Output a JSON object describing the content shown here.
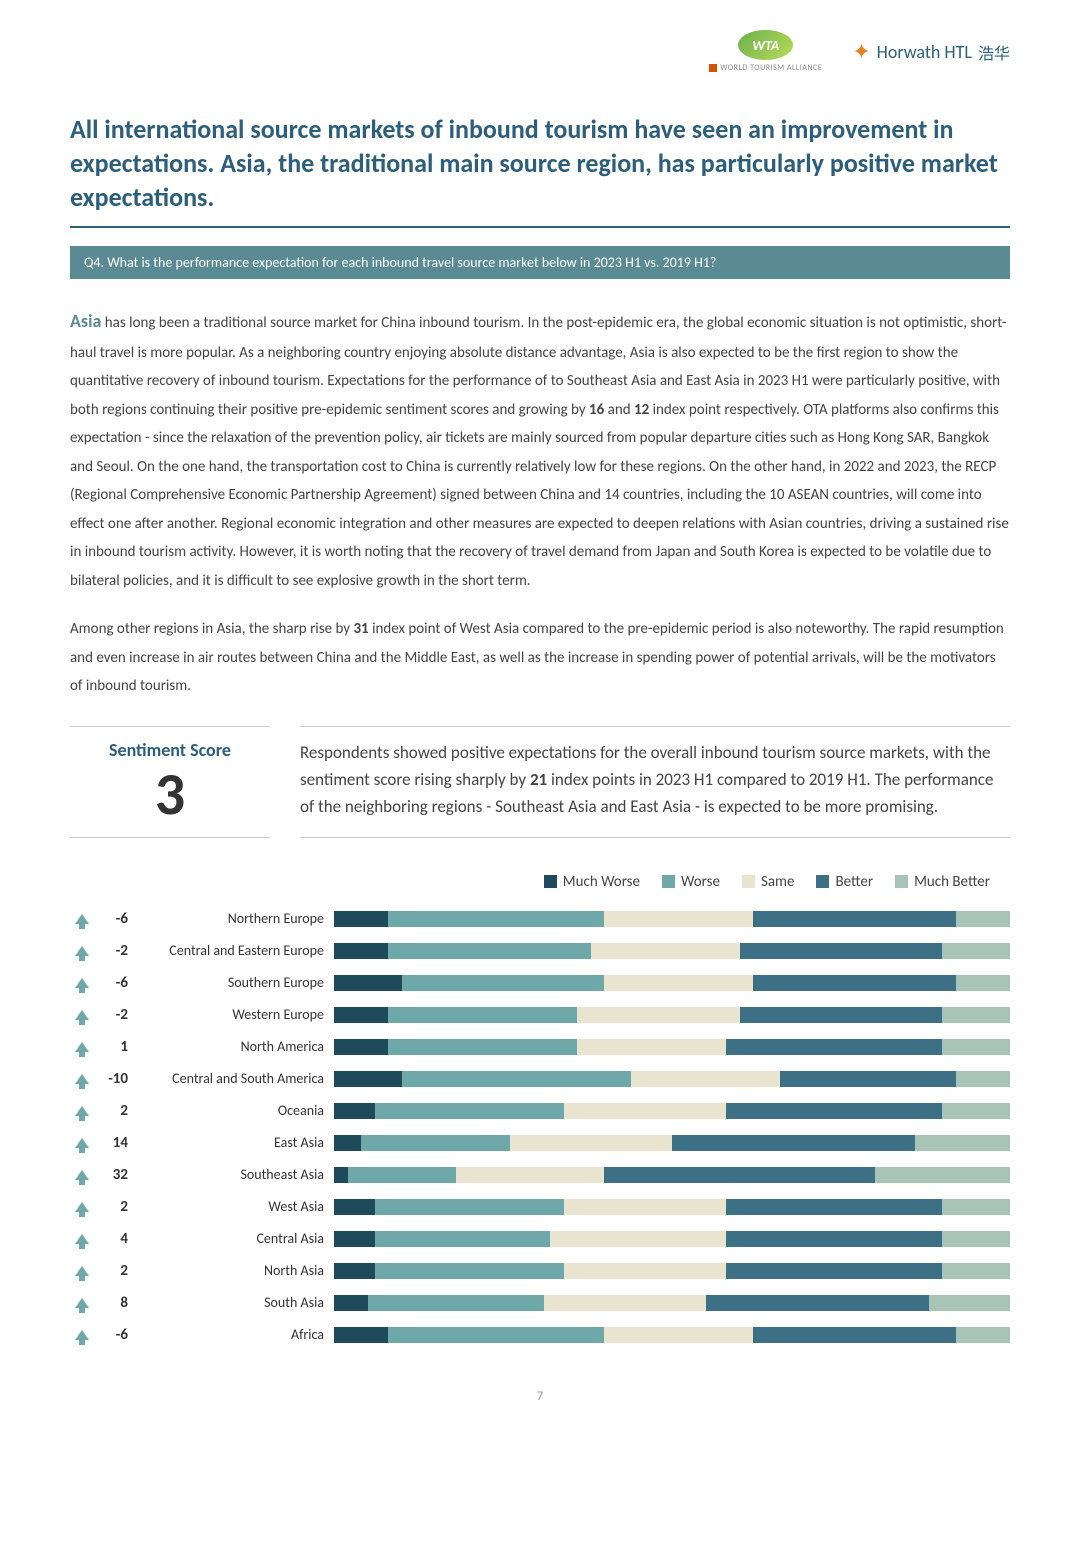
{
  "logos": {
    "wta_badge": "WTA",
    "wta_text": "WORLD TOURISM ALLIANCE",
    "horwath": "Horwath HTL",
    "horwath_cn": "浩华"
  },
  "title": "All international source markets of inbound tourism have seen an improvement in expectations. Asia, the traditional main source region, has particularly positive market expectations.",
  "question": "Q4. What is the performance expectation for each inbound travel source market below in 2023 H1 vs. 2019 H1?",
  "paragraph1_lead": "Asia",
  "paragraph1_rest": " has long been a traditional source market for China inbound tourism. In the post-epidemic era, the global economic situation is not optimistic, short-haul travel is more popular. As a neighboring country enjoying absolute distance advantage, Asia is also expected to be the first region to show the quantitative recovery of inbound tourism. Expectations for the performance of to Southeast Asia and East Asia in 2023 H1 were particularly positive, with both regions continuing their positive pre-epidemic sentiment scores and growing by ",
  "paragraph1_b1": "16",
  "paragraph1_mid1": " and ",
  "paragraph1_b2": "12",
  "paragraph1_rest2": " index point respectively. OTA platforms also confirms this expectation - since the relaxation of the prevention policy, air tickets are mainly sourced from popular departure cities such as Hong Kong SAR, Bangkok and Seoul. On the one hand, the transportation cost to China is currently relatively low for these regions. On the other hand, in 2022 and 2023, the RECP (Regional Comprehensive Economic Partnership Agreement) signed between China and 14 countries, including the 10 ASEAN countries, will come into effect one after another. Regional economic integration and other measures are expected to deepen relations with Asian countries, driving a sustained rise in inbound tourism activity. However, it is worth noting that the recovery of travel demand from Japan and South Korea is expected to be volatile due to bilateral policies, and it is difficult to see explosive growth in the short term.",
  "paragraph2_a": "Among other regions in Asia, the sharp rise by ",
  "paragraph2_b": "31",
  "paragraph2_c": " index point of West Asia compared to the pre-epidemic period is also noteworthy. The rapid resumption and even increase in air routes between China and the Middle East, as well as the increase in spending power of potential arrivals, will be the motivators of inbound tourism.",
  "sentiment": {
    "label": "Sentiment Score",
    "value": "3"
  },
  "summary_a": "Respondents showed positive expectations for the overall inbound tourism source markets, with the sentiment score rising sharply by ",
  "summary_b": "21",
  "summary_c": " index points in 2023 H1 compared to 2019 H1. The performance of the neighboring regions - Southeast Asia and East Asia - is expected to be more promising.",
  "chart": {
    "type": "stacked-bar",
    "legend": [
      "Much Worse",
      "Worse",
      "Same",
      "Better",
      "Much Better"
    ],
    "colors": {
      "much_worse": "#1e4a5c",
      "worse": "#6fa8a8",
      "same": "#e8e4d0",
      "better": "#3d6f85",
      "much_better": "#a8c4b8",
      "arrow_pos": "#6fa8a8",
      "arrow_neg": "#6fa8a8"
    },
    "rows": [
      {
        "arrow": "up",
        "value": "-6",
        "label": "Northern Europe",
        "segments": [
          8,
          32,
          22,
          30,
          8
        ]
      },
      {
        "arrow": "up",
        "value": "-2",
        "label": "Central and Eastern Europe",
        "segments": [
          8,
          30,
          22,
          30,
          10
        ]
      },
      {
        "arrow": "up",
        "value": "-6",
        "label": "Southern Europe",
        "segments": [
          10,
          30,
          22,
          30,
          8
        ]
      },
      {
        "arrow": "up",
        "value": "-2",
        "label": "Western Europe",
        "segments": [
          8,
          28,
          24,
          30,
          10
        ]
      },
      {
        "arrow": "up",
        "value": "1",
        "label": "North America",
        "segments": [
          8,
          28,
          22,
          32,
          10
        ]
      },
      {
        "arrow": "up",
        "value": "-10",
        "label": "Central and South America",
        "segments": [
          10,
          34,
          22,
          26,
          8
        ]
      },
      {
        "arrow": "up",
        "value": "2",
        "label": "Oceania",
        "segments": [
          6,
          28,
          24,
          32,
          10
        ]
      },
      {
        "arrow": "up",
        "value": "14",
        "label": "East Asia",
        "segments": [
          4,
          22,
          24,
          36,
          14
        ]
      },
      {
        "arrow": "up",
        "value": "32",
        "label": "Southeast Asia",
        "segments": [
          2,
          16,
          22,
          40,
          20
        ]
      },
      {
        "arrow": "up",
        "value": "2",
        "label": "West Asia",
        "segments": [
          6,
          28,
          24,
          32,
          10
        ]
      },
      {
        "arrow": "up",
        "value": "4",
        "label": "Central Asia",
        "segments": [
          6,
          26,
          26,
          32,
          10
        ]
      },
      {
        "arrow": "up",
        "value": "2",
        "label": "North Asia",
        "segments": [
          6,
          28,
          24,
          32,
          10
        ]
      },
      {
        "arrow": "up",
        "value": "8",
        "label": "South Asia",
        "segments": [
          5,
          26,
          24,
          33,
          12
        ]
      },
      {
        "arrow": "up",
        "value": "-6",
        "label": "Africa",
        "segments": [
          8,
          32,
          22,
          30,
          8
        ]
      }
    ]
  },
  "page_number": "7"
}
